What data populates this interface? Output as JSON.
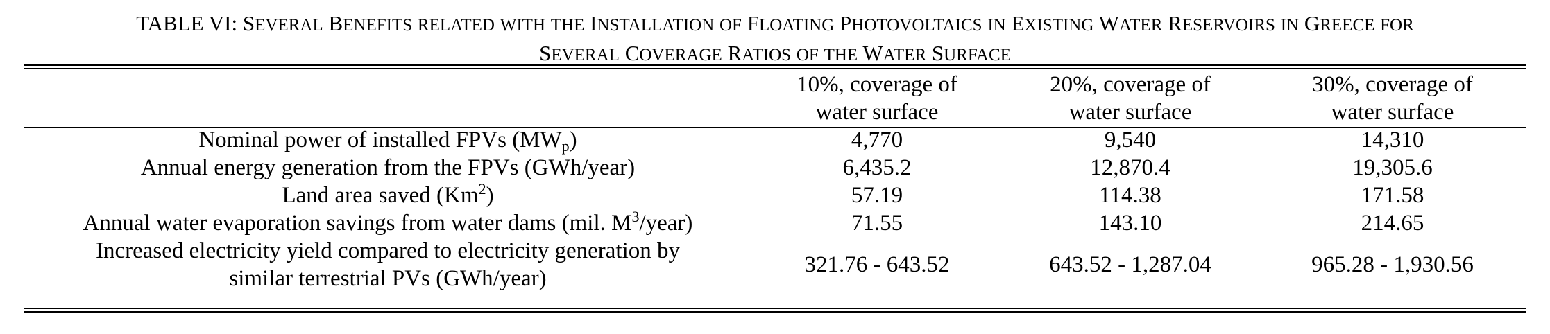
{
  "caption": {
    "line1": "TABLE VI: Several Benefits related with the Installation of Floating Photovoltaics in Existing Water Reservoirs in Greece for",
    "line2": "Several Coverage Ratios of the Water Surface"
  },
  "columns": [
    {
      "line1": "10%, coverage of",
      "line2": "water surface"
    },
    {
      "line1": "20%, coverage of",
      "line2": "water surface"
    },
    {
      "line1": "30%, coverage of",
      "line2": "water surface"
    }
  ],
  "rows": [
    {
      "label_pre": "Nominal power of installed FPVs (MW",
      "label_sub": "p",
      "label_post": ")",
      "values": [
        "4,770",
        "9,540",
        "14,310"
      ]
    },
    {
      "label": "Annual energy generation from the FPVs (GWh/year)",
      "values": [
        "6,435.2",
        "12,870.4",
        "19,305.6"
      ]
    },
    {
      "label_pre": "Land area saved (Km",
      "label_sup": "2",
      "label_post": ")",
      "values": [
        "57.19",
        "114.38",
        "171.58"
      ]
    },
    {
      "label_pre": "Annual water evaporation savings from water dams (mil. M",
      "label_sup": "3",
      "label_post": "/year)",
      "values": [
        "71.55",
        "143.10",
        "214.65"
      ]
    },
    {
      "label_line1": "Increased electricity yield compared to electricity generation by",
      "label_line2": "similar terrestrial PVs (GWh/year)",
      "values": [
        "321.76 - 643.52",
        "643.52 - 1,287.04",
        "965.28 - 1,930.56"
      ]
    }
  ]
}
